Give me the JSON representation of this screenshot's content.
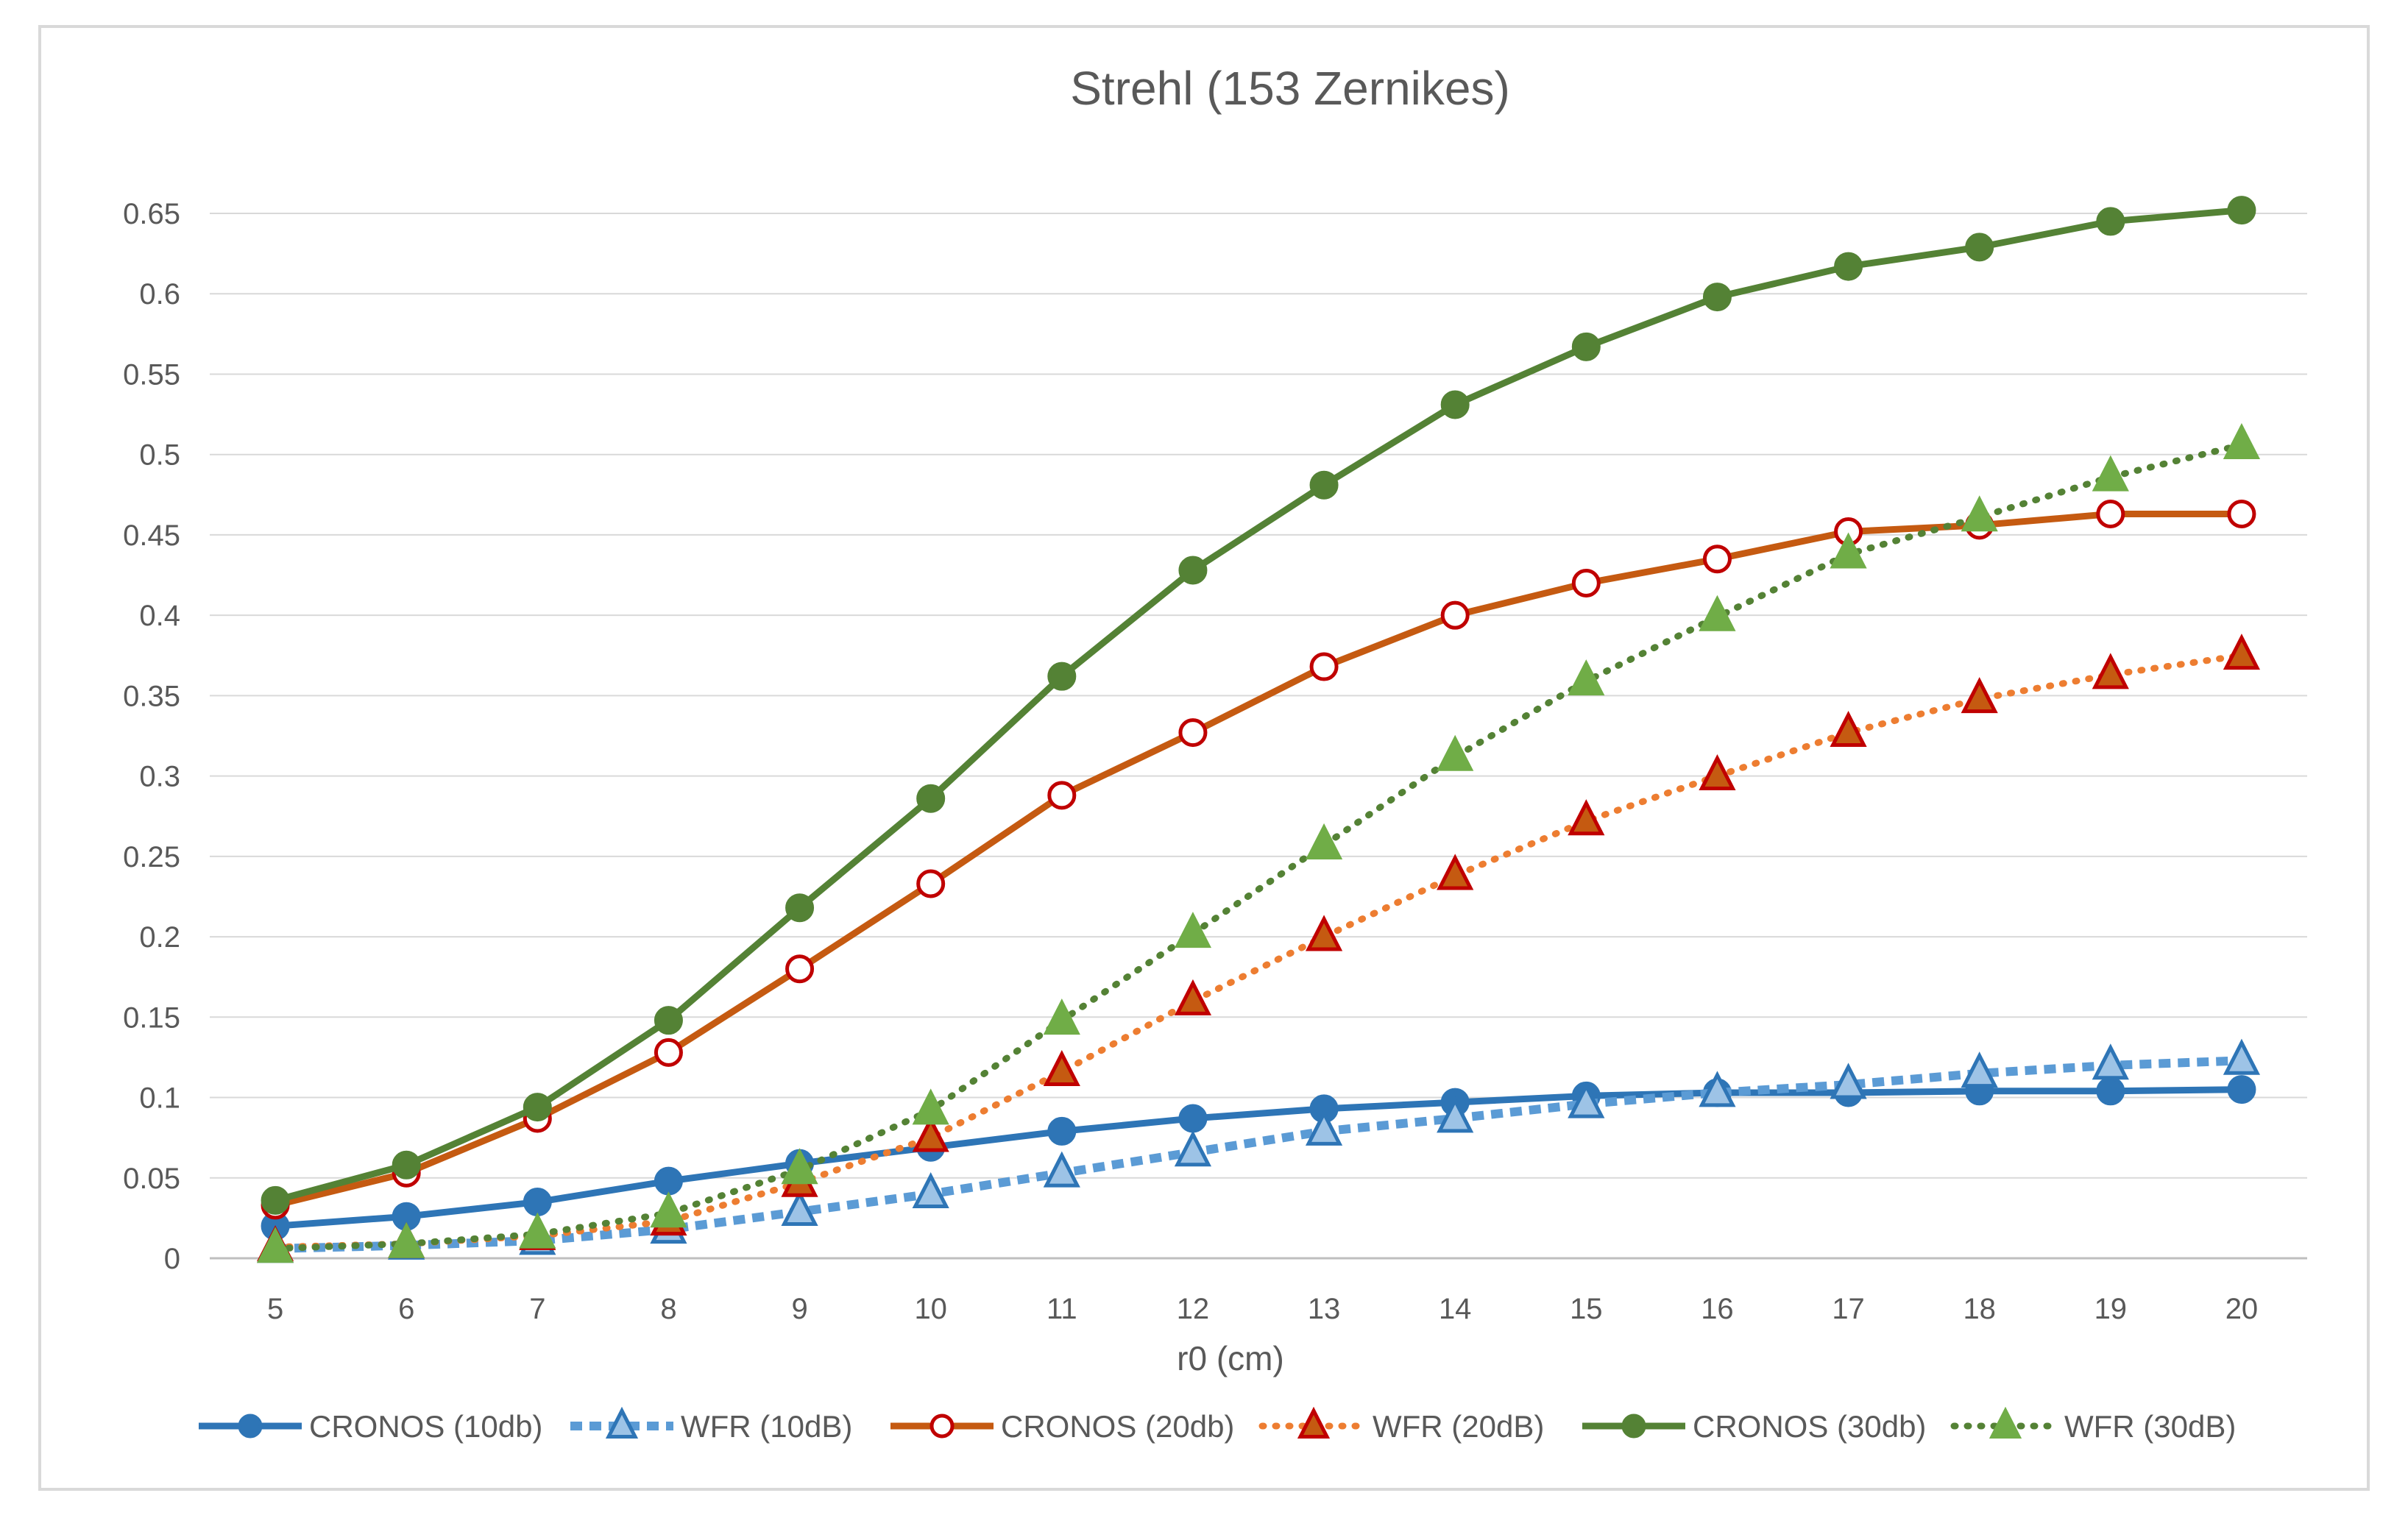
{
  "chart_data": {
    "type": "line",
    "title": "Strehl (153 Zernikes)",
    "xlabel": "r0 (cm)",
    "ylabel": "",
    "categories": [
      "5",
      "6",
      "7",
      "8",
      "9",
      "10",
      "11",
      "12",
      "13",
      "14",
      "15",
      "16",
      "17",
      "18",
      "19",
      "20"
    ],
    "ylim": [
      0,
      0.65
    ],
    "yticks": [
      "0",
      "0.05",
      "0.1",
      "0.15",
      "0.2",
      "0.25",
      "0.3",
      "0.35",
      "0.4",
      "0.45",
      "0.5",
      "0.55",
      "0.6",
      "0.65"
    ],
    "grid": true,
    "legend_position": "bottom",
    "series": [
      {
        "name": "CRONOS (10db)",
        "color": "#2e75b6",
        "dashed": false,
        "marker": "circle",
        "marker_fill": "#2e75b6",
        "marker_stroke": "#2e75b6",
        "values": [
          0.02,
          0.026,
          0.035,
          0.048,
          0.059,
          0.069,
          0.079,
          0.087,
          0.093,
          0.097,
          0.101,
          0.103,
          0.103,
          0.104,
          0.104,
          0.105
        ]
      },
      {
        "name": "WFR (10dB)",
        "color": "#5b9bd5",
        "dashed": true,
        "marker": "triangle",
        "marker_fill": "#9dc3e6",
        "marker_stroke": "#2e75b6",
        "values": [
          0.006,
          0.008,
          0.011,
          0.018,
          0.029,
          0.04,
          0.053,
          0.066,
          0.079,
          0.087,
          0.096,
          0.103,
          0.108,
          0.115,
          0.12,
          0.123
        ]
      },
      {
        "name": "CRONOS (20db)",
        "color": "#c55a11",
        "dashed": false,
        "marker": "circle",
        "marker_fill": "#ffffff",
        "marker_stroke": "#c00000",
        "values": [
          0.033,
          0.053,
          0.087,
          0.128,
          0.18,
          0.233,
          0.288,
          0.327,
          0.368,
          0.4,
          0.42,
          0.435,
          0.452,
          0.456,
          0.463,
          0.463
        ]
      },
      {
        "name": "WFR (20dB)",
        "color": "#ed7d31",
        "dashed": true,
        "marker": "triangle",
        "marker_fill": "#c55a11",
        "marker_stroke": "#c00000",
        "values": [
          0.007,
          0.009,
          0.014,
          0.023,
          0.047,
          0.075,
          0.116,
          0.16,
          0.2,
          0.238,
          0.272,
          0.3,
          0.327,
          0.348,
          0.363,
          0.375
        ]
      },
      {
        "name": "CRONOS (30db)",
        "color": "#548235",
        "dashed": false,
        "marker": "circle",
        "marker_fill": "#548235",
        "marker_stroke": "#548235",
        "values": [
          0.036,
          0.058,
          0.094,
          0.148,
          0.218,
          0.286,
          0.362,
          0.428,
          0.481,
          0.531,
          0.567,
          0.598,
          0.617,
          0.629,
          0.645,
          0.652
        ]
      },
      {
        "name": "WFR (30dB)",
        "color": "#548235",
        "dashed": true,
        "marker": "triangle",
        "marker_fill": "#70ad47",
        "marker_stroke": "#70ad47",
        "values": [
          0.006,
          0.009,
          0.015,
          0.028,
          0.055,
          0.092,
          0.148,
          0.202,
          0.257,
          0.312,
          0.359,
          0.399,
          0.438,
          0.461,
          0.486,
          0.506
        ]
      }
    ]
  }
}
